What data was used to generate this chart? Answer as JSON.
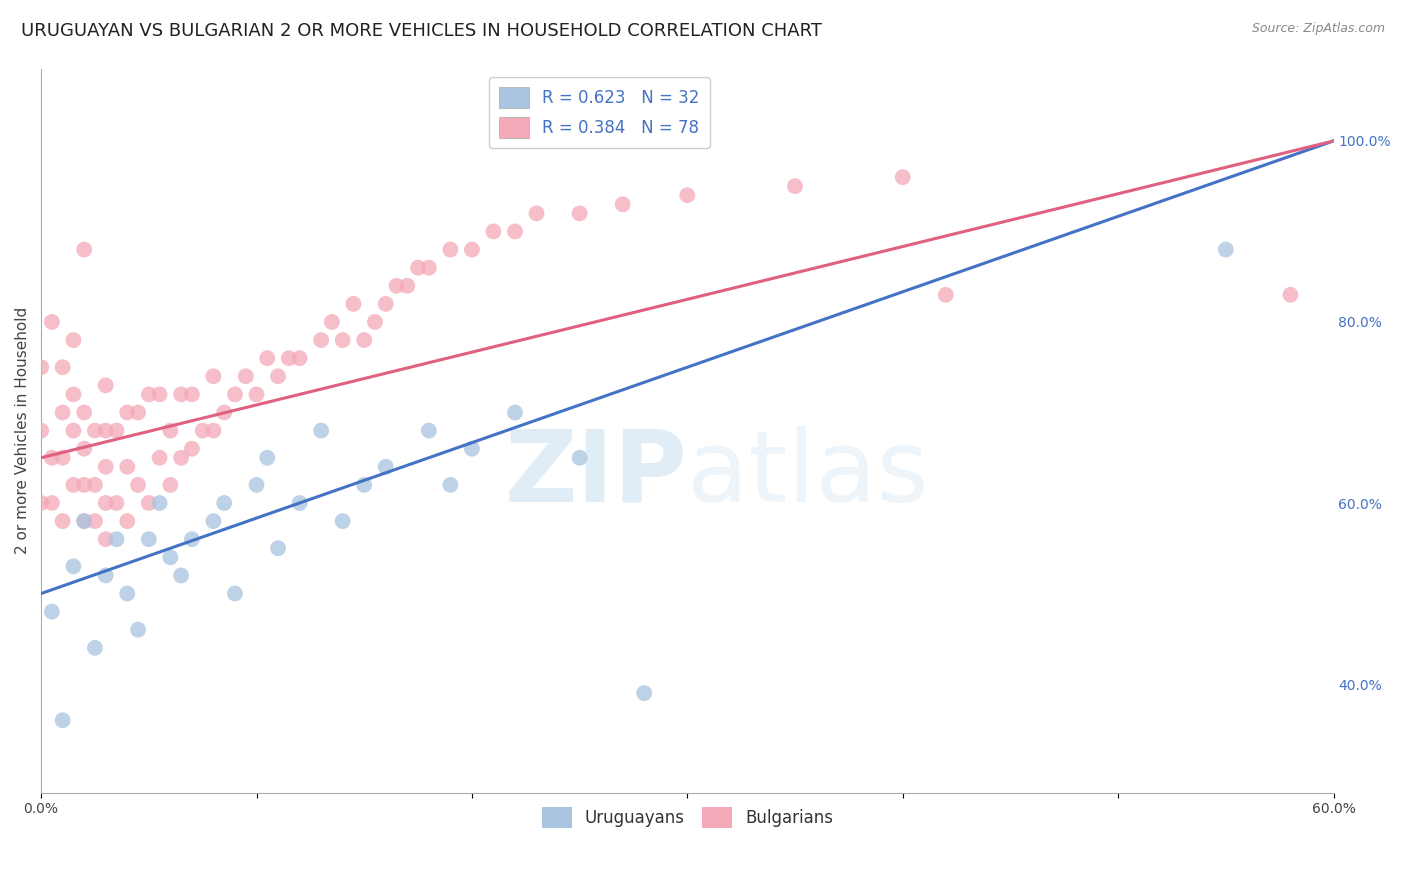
{
  "title": "URUGUAYAN VS BULGARIAN 2 OR MORE VEHICLES IN HOUSEHOLD CORRELATION CHART",
  "source_text": "Source: ZipAtlas.com",
  "ylabel": "2 or more Vehicles in Household",
  "watermark_zip": "ZIP",
  "watermark_atlas": "atlas",
  "xlim": [
    0.0,
    0.6
  ],
  "ylim": [
    0.28,
    1.08
  ],
  "xticks": [
    0.0,
    0.1,
    0.2,
    0.3,
    0.4,
    0.5,
    0.6
  ],
  "xticklabels": [
    "0.0%",
    "",
    "",
    "",
    "",
    "",
    "60.0%"
  ],
  "yticks_right": [
    0.4,
    0.6,
    0.8,
    1.0
  ],
  "ytick_labels_right": [
    "40.0%",
    "60.0%",
    "80.0%",
    "100.0%"
  ],
  "uruguayan_color": "#a8c4e0",
  "bulgarian_color": "#f4a8b8",
  "uruguayan_line_color": "#4472c4",
  "bulgarian_line_color": "#e06080",
  "legend_label_1": "R = 0.623   N = 32",
  "legend_label_2": "R = 0.384   N = 78",
  "background_color": "#ffffff",
  "grid_color": "#cccccc",
  "uruguayan_x": [
    0.005,
    0.01,
    0.015,
    0.02,
    0.025,
    0.03,
    0.035,
    0.04,
    0.045,
    0.05,
    0.055,
    0.06,
    0.065,
    0.07,
    0.08,
    0.085,
    0.09,
    0.1,
    0.105,
    0.11,
    0.12,
    0.13,
    0.14,
    0.15,
    0.16,
    0.18,
    0.19,
    0.2,
    0.22,
    0.25,
    0.28,
    0.55
  ],
  "uruguayan_y": [
    0.48,
    0.36,
    0.53,
    0.58,
    0.44,
    0.52,
    0.56,
    0.5,
    0.46,
    0.56,
    0.6,
    0.54,
    0.52,
    0.56,
    0.58,
    0.6,
    0.5,
    0.62,
    0.65,
    0.55,
    0.6,
    0.68,
    0.58,
    0.62,
    0.64,
    0.68,
    0.62,
    0.66,
    0.7,
    0.65,
    0.39,
    0.88
  ],
  "bulgarian_x": [
    0.0,
    0.0,
    0.0,
    0.005,
    0.005,
    0.005,
    0.01,
    0.01,
    0.01,
    0.01,
    0.015,
    0.015,
    0.015,
    0.015,
    0.02,
    0.02,
    0.02,
    0.02,
    0.02,
    0.025,
    0.025,
    0.025,
    0.03,
    0.03,
    0.03,
    0.03,
    0.03,
    0.035,
    0.035,
    0.04,
    0.04,
    0.04,
    0.045,
    0.045,
    0.05,
    0.05,
    0.055,
    0.055,
    0.06,
    0.06,
    0.065,
    0.065,
    0.07,
    0.07,
    0.075,
    0.08,
    0.08,
    0.085,
    0.09,
    0.095,
    0.1,
    0.105,
    0.11,
    0.115,
    0.12,
    0.13,
    0.135,
    0.14,
    0.145,
    0.15,
    0.155,
    0.16,
    0.165,
    0.17,
    0.175,
    0.18,
    0.19,
    0.2,
    0.21,
    0.22,
    0.23,
    0.25,
    0.27,
    0.3,
    0.35,
    0.4,
    0.42,
    0.58
  ],
  "bulgarian_y": [
    0.6,
    0.68,
    0.75,
    0.6,
    0.65,
    0.8,
    0.58,
    0.65,
    0.7,
    0.75,
    0.62,
    0.68,
    0.72,
    0.78,
    0.58,
    0.62,
    0.66,
    0.7,
    0.88,
    0.58,
    0.62,
    0.68,
    0.56,
    0.6,
    0.64,
    0.68,
    0.73,
    0.6,
    0.68,
    0.58,
    0.64,
    0.7,
    0.62,
    0.7,
    0.6,
    0.72,
    0.65,
    0.72,
    0.62,
    0.68,
    0.65,
    0.72,
    0.66,
    0.72,
    0.68,
    0.68,
    0.74,
    0.7,
    0.72,
    0.74,
    0.72,
    0.76,
    0.74,
    0.76,
    0.76,
    0.78,
    0.8,
    0.78,
    0.82,
    0.78,
    0.8,
    0.82,
    0.84,
    0.84,
    0.86,
    0.86,
    0.88,
    0.88,
    0.9,
    0.9,
    0.92,
    0.92,
    0.93,
    0.94,
    0.95,
    0.96,
    0.83,
    0.83
  ],
  "title_fontsize": 13,
  "axis_label_fontsize": 11,
  "tick_fontsize": 10,
  "legend_fontsize": 12
}
